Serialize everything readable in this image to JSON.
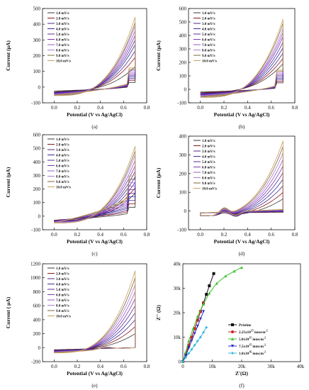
{
  "legend_rates": [
    "1.0 mV/s",
    "2.0 mV/s",
    "3.0 mV/s",
    "4.0 mV/s",
    "5.0 mV/s",
    "6.0 mV/s",
    "7.0 mV/s",
    "8.0 mV/s",
    "9.0 mV/s",
    "10.0 mV/s"
  ],
  "cv_colors": [
    "#3a3a3a",
    "#8b1a1a",
    "#4b2a8a",
    "#2f2f9f",
    "#5a2a9a",
    "#7a3ab0",
    "#9a5ac8",
    "#b07ad8",
    "#7a6a3a",
    "#c8a060"
  ],
  "chart_data": [
    {
      "type": "line",
      "panel": "(a)",
      "xlabel": "Potential (V vs Ag/AgCl)",
      "ylabel": "Current (μA)",
      "xlim": [
        -0.1,
        0.8
      ],
      "ylim": [
        -100,
        500
      ],
      "xticks": [
        "0.0",
        "0.2",
        "0.4",
        "0.6",
        "0.8"
      ],
      "yticks": [
        "-100",
        "0",
        "100",
        "200",
        "300",
        "400",
        "500"
      ],
      "series_names": [
        "1.0 mV/s",
        "2.0 mV/s",
        "3.0 mV/s",
        "4.0 mV/s",
        "5.0 mV/s",
        "6.0 mV/s",
        "7.0 mV/s",
        "8.0 mV/s",
        "9.0 mV/s",
        "10.0 mV/s"
      ],
      "x_start": 0.0,
      "x_end": 0.7,
      "peak_current": [
        130,
        190,
        230,
        270,
        300,
        330,
        360,
        390,
        410,
        445
      ],
      "min_current": [
        -25,
        -30,
        -33,
        -36,
        -39,
        -42,
        -45,
        -48,
        -51,
        -54
      ],
      "cathodic_current": [
        10,
        15,
        20,
        25,
        30,
        35,
        40,
        45,
        50,
        55
      ]
    },
    {
      "type": "line",
      "panel": "(b)",
      "xlabel": "Potential (V vs Ag/AgCl)",
      "ylabel": "Current (μA)",
      "xlim": [
        -0.1,
        0.8
      ],
      "ylim": [
        -100,
        600
      ],
      "xticks": [
        "0.0",
        "0.2",
        "0.4",
        "0.6",
        "0.8"
      ],
      "yticks": [
        "-100",
        "0",
        "100",
        "200",
        "300",
        "400",
        "500",
        "600"
      ],
      "series_names": [
        "1.0 mV/s",
        "2.0 mV/s",
        "3.0 mV/s",
        "4.0 mV/s",
        "5.0 mV/s",
        "6.0 mV/s",
        "7.0 mV/s",
        "8.0 mV/s",
        "9.0 mV/s",
        "10.0 mV/s"
      ],
      "x_start": 0.0,
      "x_end": 0.7,
      "peak_current": [
        190,
        230,
        270,
        310,
        350,
        390,
        420,
        450,
        490,
        520
      ],
      "min_current": [
        -20,
        -25,
        -30,
        -34,
        -38,
        -42,
        -46,
        -50,
        -55,
        -60
      ],
      "cathodic_current": [
        20,
        25,
        30,
        35,
        40,
        45,
        50,
        55,
        60,
        65
      ]
    },
    {
      "type": "line",
      "panel": "(c)",
      "xlabel": "Potential (V vs Ag/AgCl)",
      "ylabel": "Current (μA)",
      "xlim": [
        -0.1,
        0.8
      ],
      "ylim": [
        -100,
        600
      ],
      "xticks": [
        "0.0",
        "0.2",
        "0.4",
        "0.6",
        "0.8"
      ],
      "yticks": [
        "-100",
        "0",
        "100",
        "200",
        "300",
        "400",
        "500",
        "600"
      ],
      "series_names": [
        "1.0 mV/s",
        "2.0 mV/s",
        "3.0 mV/s",
        "4.0 mV/s",
        "5.0 mV/s",
        "6.0 mV/s",
        "7.0 mV/s",
        "8.0 mV/s",
        "9.0 mV/s",
        "10.0 mV/s"
      ],
      "x_start": 0.0,
      "x_end": 0.7,
      "peak_current": [
        170,
        210,
        250,
        290,
        330,
        370,
        410,
        450,
        480,
        515
      ],
      "min_current": [
        -30,
        -30,
        -35,
        -35,
        -40,
        -40,
        -45,
        -45,
        -50,
        -50
      ],
      "cathodic_current": [
        40,
        60,
        80,
        100,
        120,
        140,
        160,
        180,
        200,
        220
      ]
    },
    {
      "type": "line",
      "panel": "(d)",
      "xlabel": "Potential (V vs Ag/AgCl)",
      "ylabel": "Current (μA)",
      "xlim": [
        -0.1,
        0.8
      ],
      "ylim": [
        -100,
        400
      ],
      "xticks": [
        "0.0",
        "0.2",
        "0.4",
        "0.6",
        "0.8"
      ],
      "yticks": [
        "-100",
        "0",
        "100",
        "200",
        "300",
        "400"
      ],
      "series_names": [
        "1.0 mV/s",
        "2.0 mV/s",
        "3.0 mV/s",
        "4.0 mV/s",
        "5.0 mV/s",
        "6.0 mV/s",
        "7.0 mV/s",
        "8.0 mV/s",
        "9.0 mV/s",
        "10.0 mV/s"
      ],
      "x_start": 0.0,
      "x_end": 0.7,
      "peak_current": [
        65,
        100,
        135,
        170,
        205,
        240,
        275,
        310,
        345,
        375
      ],
      "min_current": [
        -25,
        -25,
        -25,
        -25,
        -25,
        -25,
        -25,
        -25,
        -25,
        -25
      ],
      "cathodic_current": [
        0,
        0,
        0,
        0,
        0,
        0,
        0,
        0,
        0,
        0
      ]
    },
    {
      "type": "line",
      "panel": "(e)",
      "xlabel": "Potential (V vs Ag/AgCl)",
      "ylabel": "Current ( μA)",
      "xlim": [
        -0.1,
        0.8
      ],
      "ylim": [
        -200,
        1200
      ],
      "xticks": [
        "0.0",
        "0.2",
        "0.4",
        "0.6",
        "0.8"
      ],
      "yticks": [
        "-200",
        "0",
        "200",
        "400",
        "600",
        "800",
        "1000",
        "1200"
      ],
      "series_names": [
        "1.0 mV/s",
        "2.0 mV/s",
        "3.0 mV/s",
        "4.0 mV/s",
        "5.0 mV/s",
        "6.0 mV/s",
        "7.0 mV/s",
        "8.0 mV/s",
        "9.0 mV/s",
        "10.0 mV/s"
      ],
      "x_start": 0.0,
      "x_end": 0.7,
      "peak_current": [
        200,
        300,
        400,
        500,
        600,
        700,
        800,
        900,
        1000,
        1100
      ],
      "min_current": [
        -30,
        -35,
        -40,
        -45,
        -50,
        -55,
        -60,
        -65,
        -70,
        -75
      ],
      "cathodic_current": [
        0,
        0,
        0,
        0,
        0,
        0,
        0,
        0,
        0,
        0
      ]
    },
    {
      "type": "line",
      "panel": "(f)",
      "xlabel": "Z'(Ω)",
      "ylabel": "Z'' (Ω)",
      "xlim": [
        0,
        40000
      ],
      "ylim": [
        0,
        40000
      ],
      "xticks": [
        "0",
        "10k",
        "20k",
        "30k",
        "40k"
      ],
      "yticks": [
        "0",
        "10k",
        "20k",
        "30k",
        "40k"
      ],
      "series": [
        {
          "name": "Pristine",
          "color": "#111111",
          "marker": "square",
          "x": [
            0,
            1000,
            2000,
            3000,
            4000,
            5000,
            6000,
            7000,
            8000,
            9000,
            10500
          ],
          "y": [
            0,
            3000,
            6500,
            10000,
            13500,
            17000,
            20500,
            24000,
            27500,
            31000,
            36000
          ]
        },
        {
          "name_prefix": "2.25x10",
          "name_sup": "15",
          "name_suffix": " ionscm",
          "name_sup2": "-2",
          "color": "#cc2222",
          "marker": "circle",
          "x": [
            0,
            1000,
            2000,
            3000,
            4000,
            5000,
            6000,
            7000
          ],
          "y": [
            0,
            3200,
            6800,
            10000,
            13500,
            17000,
            20500,
            24000
          ]
        },
        {
          "name_prefix": "5.0x10",
          "name_sup": "15",
          "name_suffix": " ionscm",
          "name_sup2": "-2",
          "color": "#3cbf2c",
          "marker": "triangle",
          "x": [
            0,
            1000,
            2000,
            3500,
            5000,
            7000,
            9000,
            11500,
            14500,
            17500,
            20000
          ],
          "y": [
            0,
            4000,
            8500,
            13500,
            18500,
            23500,
            28000,
            32000,
            35000,
            37000,
            38500
          ]
        },
        {
          "name_prefix": "7.5x10",
          "name_sup": "15",
          "name_suffix": " ionscm",
          "name_sup2": "-2",
          "color": "#2a2ad0",
          "marker": "triangle-down",
          "x": [
            0,
            1000,
            2000,
            3000,
            4000,
            5000,
            6000,
            7000
          ],
          "y": [
            0,
            2500,
            5500,
            8500,
            11500,
            14500,
            17500,
            20500
          ]
        },
        {
          "name_prefix": "1.0x10",
          "name_sup": "16",
          "name_suffix": " ionscm",
          "name_sup2": "-2",
          "color": "#35b8e0",
          "marker": "diamond",
          "x": [
            0,
            1000,
            2000,
            3000,
            4000,
            5000,
            6000,
            7000,
            8000
          ],
          "y": [
            0,
            1700,
            3400,
            5000,
            6700,
            8400,
            10000,
            12000,
            14000
          ]
        }
      ]
    }
  ]
}
